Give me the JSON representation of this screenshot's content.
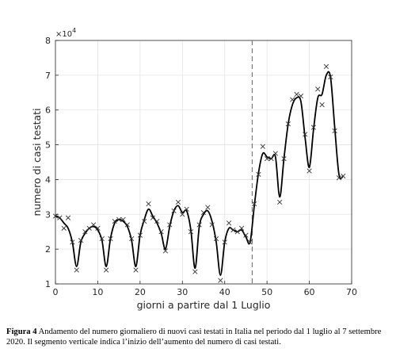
{
  "chart_data": {
    "type": "line",
    "xlabel": "giorni a partire dal 1 Luglio",
    "ylabel": "numero di casi testati",
    "y_scale_note": "×10",
    "y_scale_exp": "4",
    "xlim": [
      0,
      70
    ],
    "ylim": [
      1,
      8
    ],
    "xticks": [
      0,
      10,
      20,
      30,
      40,
      50,
      60,
      70
    ],
    "yticks": [
      1,
      2,
      3,
      4,
      5,
      6,
      7,
      8
    ],
    "grid": true,
    "vline_x": 46.5,
    "series": [
      {
        "style": "markers-x",
        "x": [
          0,
          1,
          2,
          3,
          4,
          5,
          6,
          7,
          8,
          9,
          10,
          11,
          12,
          13,
          14,
          15,
          16,
          17,
          18,
          19,
          20,
          21,
          22,
          23,
          24,
          25,
          26,
          27,
          28,
          29,
          30,
          31,
          32,
          33,
          34,
          35,
          36,
          37,
          38,
          39,
          40,
          41,
          42,
          43,
          44,
          45,
          46,
          47,
          48,
          49,
          50,
          51,
          52,
          53,
          54,
          55,
          56,
          57,
          58,
          59,
          60,
          61,
          62,
          63,
          64,
          65,
          66,
          67,
          68
        ],
        "y": [
          2.95,
          2.9,
          2.6,
          2.9,
          2.2,
          1.4,
          2.25,
          2.5,
          2.6,
          2.7,
          2.6,
          2.3,
          1.4,
          2.3,
          2.8,
          2.85,
          2.85,
          2.7,
          2.3,
          1.4,
          2.4,
          2.8,
          3.3,
          2.9,
          2.8,
          2.5,
          1.95,
          2.7,
          3.1,
          3.35,
          3.0,
          3.15,
          2.5,
          1.35,
          2.7,
          3.05,
          3.2,
          2.7,
          2.3,
          1.1,
          2.2,
          2.75,
          2.55,
          2.5,
          2.6,
          2.4,
          2.2,
          3.3,
          4.15,
          4.95,
          4.6,
          4.6,
          4.75,
          3.35,
          4.6,
          5.6,
          6.3,
          6.45,
          6.4,
          5.3,
          4.25,
          5.5,
          6.6,
          6.15,
          7.25,
          6.95,
          5.4,
          4.05,
          4.1
        ]
      },
      {
        "style": "smooth-line",
        "x": [
          0,
          1,
          2,
          3,
          4,
          5,
          6,
          7,
          8,
          9,
          10,
          11,
          12,
          13,
          14,
          15,
          16,
          17,
          18,
          19,
          20,
          21,
          22,
          23,
          24,
          25,
          26,
          27,
          28,
          29,
          30,
          31,
          32,
          33,
          34,
          35,
          36,
          37,
          38,
          39,
          40,
          41,
          42,
          43,
          44,
          45,
          46,
          47,
          48,
          49,
          50,
          51,
          52,
          53,
          54,
          55,
          56,
          57,
          58,
          59,
          60,
          61,
          62,
          63,
          64,
          65,
          66,
          67,
          68
        ],
        "y": [
          2.95,
          2.9,
          2.75,
          2.6,
          2.2,
          1.5,
          2.2,
          2.45,
          2.6,
          2.65,
          2.55,
          2.25,
          1.5,
          2.3,
          2.75,
          2.85,
          2.8,
          2.65,
          2.25,
          1.5,
          2.4,
          2.85,
          3.15,
          2.95,
          2.75,
          2.45,
          2.0,
          2.65,
          3.1,
          3.25,
          3.05,
          3.1,
          2.55,
          1.45,
          2.65,
          3.0,
          3.1,
          2.8,
          2.2,
          1.25,
          2.2,
          2.6,
          2.55,
          2.5,
          2.55,
          2.35,
          2.2,
          3.25,
          4.2,
          4.75,
          4.65,
          4.6,
          4.65,
          3.5,
          4.6,
          5.6,
          6.15,
          6.35,
          6.25,
          5.2,
          4.35,
          5.45,
          6.35,
          6.45,
          7.0,
          6.95,
          5.5,
          4.15,
          4.1
        ]
      }
    ]
  },
  "caption": {
    "label": "Figura 4",
    "text": " Andamento del numero giornaliero di nuovi casi testati in Italia nel periodo dal 1 luglio al 7 settembre 2020. Il segmento verticale indica l’inizio dell’aumento del numero di casi testati."
  }
}
